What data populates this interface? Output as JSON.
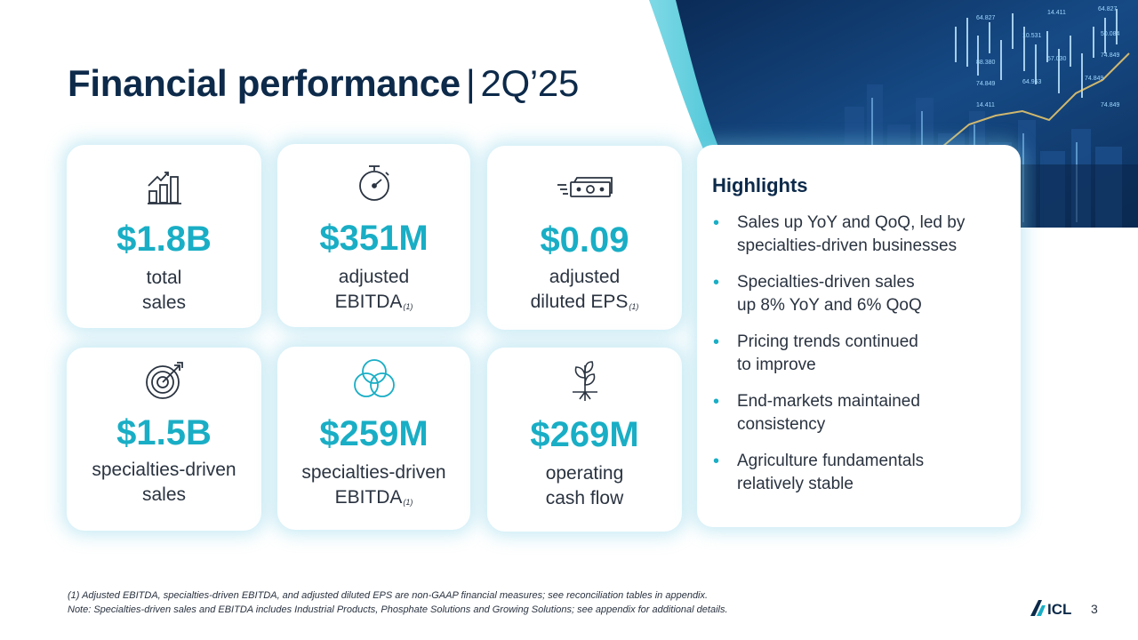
{
  "header": {
    "title_main": "Financial performance",
    "title_sep": "|",
    "title_period": "2Q’25"
  },
  "hero": {
    "tickers": [
      "64.827",
      "14.411",
      "64.827",
      "10.531",
      "50.084",
      "88.380",
      "57.030",
      "74.849",
      "74.849",
      "64.963",
      "74.849",
      "14.411",
      "74.849"
    ]
  },
  "metrics": [
    {
      "icon": "bar-chart-growth-icon",
      "value": "$1.8B",
      "label_lines": [
        "total",
        "sales"
      ],
      "footnote": ""
    },
    {
      "icon": "stopwatch-icon",
      "value": "$351M",
      "label_lines": [
        "adjusted",
        "EBITDA"
      ],
      "footnote": "(1)"
    },
    {
      "icon": "money-bills-icon",
      "value": "$0.09",
      "label_lines": [
        "adjusted",
        "diluted EPS"
      ],
      "footnote": "(1)"
    },
    {
      "icon": "target-arrow-icon",
      "value": "$1.5B",
      "label_lines": [
        "specialties-driven",
        "sales"
      ],
      "footnote": ""
    },
    {
      "icon": "three-circles-icon",
      "value": "$259M",
      "label_lines": [
        "specialties-driven",
        "EBITDA"
      ],
      "footnote": "(1)"
    },
    {
      "icon": "sprout-icon",
      "value": "$269M",
      "label_lines": [
        "operating",
        "cash flow"
      ],
      "footnote": ""
    }
  ],
  "highlights": {
    "title": "Highlights",
    "bullet": "•",
    "items": [
      [
        "Sales up YoY and QoQ, led by",
        "specialties-driven businesses"
      ],
      [
        "Specialties-driven sales",
        "up 8% YoY and 6% QoQ"
      ],
      [
        "Pricing trends continued",
        "to improve"
      ],
      [
        "End-markets maintained",
        "consistency"
      ],
      [
        "Agriculture fundamentals",
        "relatively stable"
      ]
    ]
  },
  "footnotes": [
    "(1) Adjusted EBITDA, specialties-driven EBITDA, and adjusted diluted EPS are non-GAAP financial measures; see reconciliation tables in appendix.",
    "Note: Specialties-driven sales and EBITDA includes Industrial Products, Phosphate Solutions and Growing Solutions; see appendix for additional details."
  ],
  "logo": {
    "text": "ICL",
    "color": "#0d2a4a"
  },
  "page_number": "3",
  "colors": {
    "accent": "#19aec5",
    "navy": "#0d2a4a",
    "text": "#2a3340"
  }
}
